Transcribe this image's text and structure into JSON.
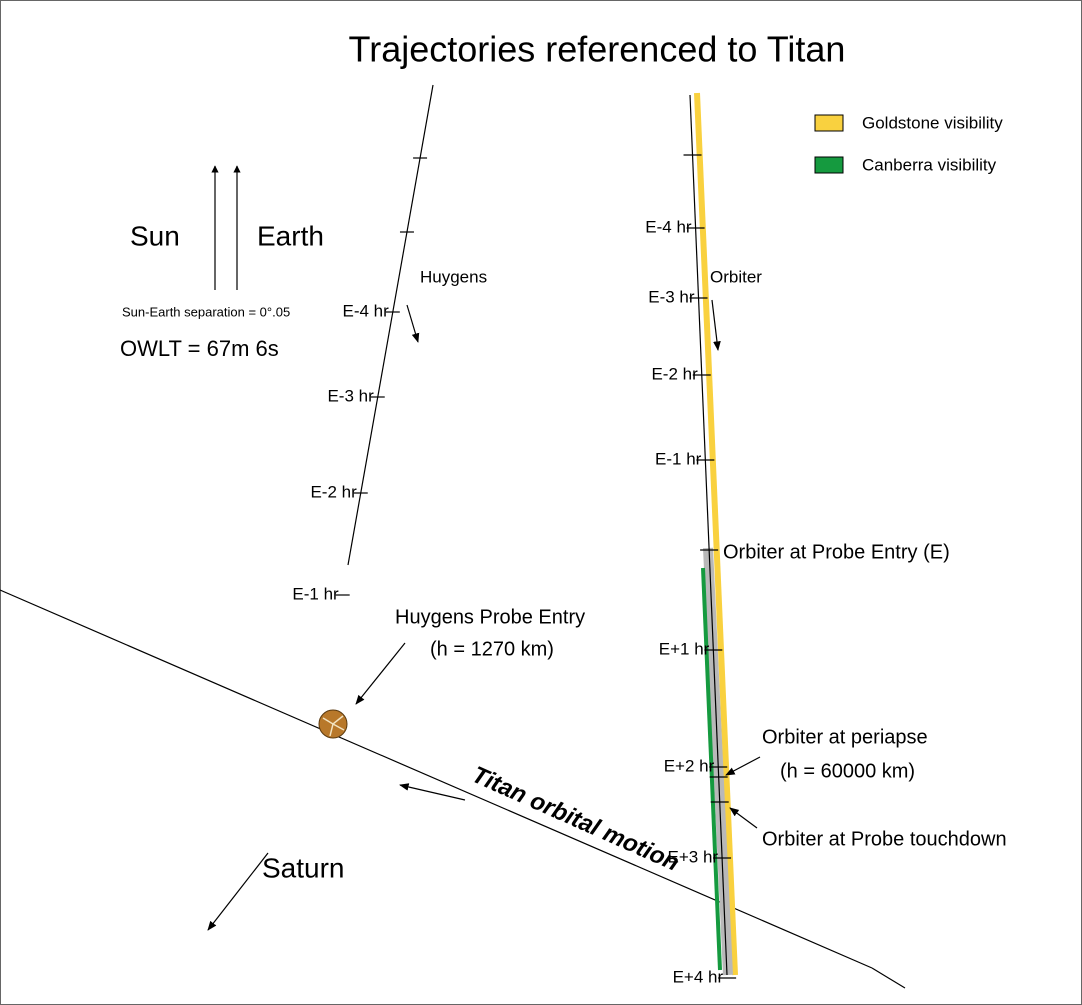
{
  "title": "Trajectories referenced to Titan",
  "legend": [
    {
      "label": "Goldstone visibility"
    },
    {
      "label": "Canberra visibility"
    }
  ],
  "directions": {
    "sun": "Sun",
    "earth": "Earth",
    "separation": "Sun-Earth separation = 0°.05",
    "owlt": "OWLT = 67m 6s",
    "saturn": "Saturn"
  },
  "huygens": {
    "label": "Huygens",
    "ticks": [
      "E-4 hr",
      "E-3 hr",
      "E-2 hr",
      "E-1 hr"
    ],
    "entry": "Huygens Probe Entry",
    "entry_altitude": "(h = 1270 km)"
  },
  "orbiter": {
    "label": "Orbiter",
    "ticks": [
      "E-4 hr",
      "E-3 hr",
      "E-2 hr",
      "E-1 hr",
      "E+1 hr",
      "E+2 hr",
      "E+3 hr",
      "E+4 hr"
    ],
    "entry": "Orbiter at Probe Entry (E)",
    "periapse": "Orbiter at periapse",
    "periapse_altitude": "(h = 60000 km)",
    "touchdown": "Orbiter at Probe touchdown"
  },
  "titan_motion": "Titan orbital motion"
}
